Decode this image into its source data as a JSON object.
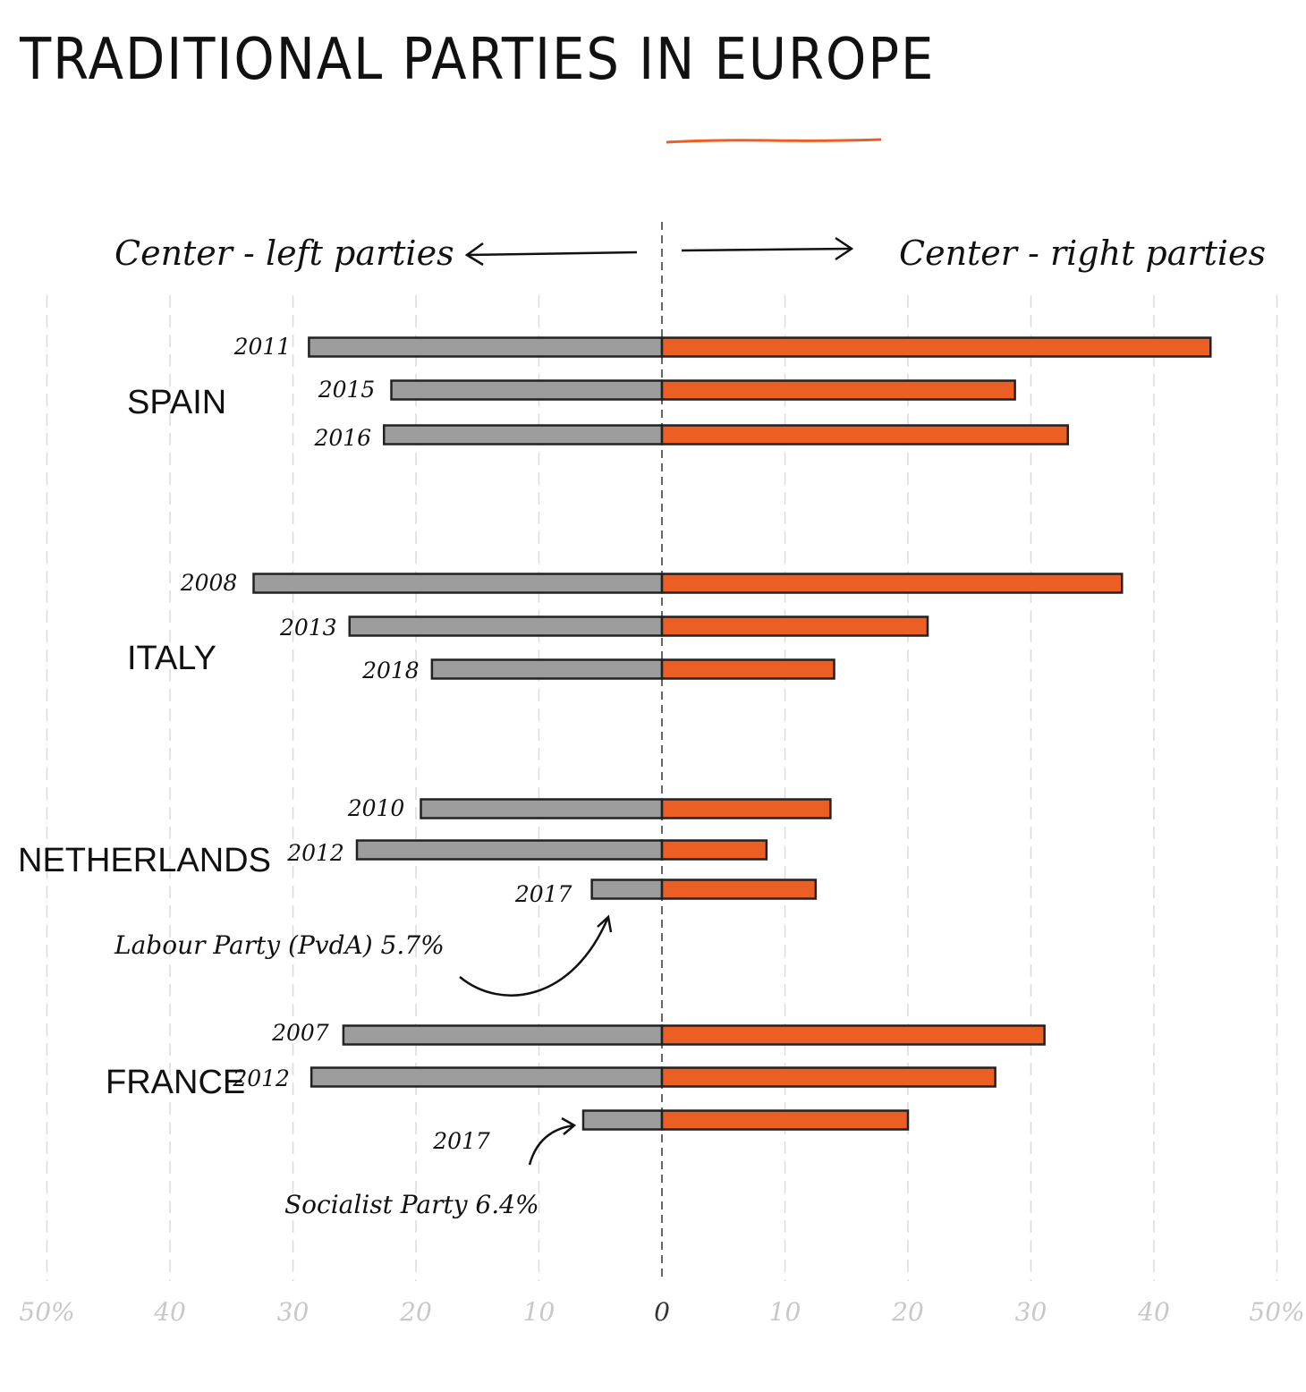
{
  "colors": {
    "left": "#9d9d9d",
    "right": "#eb5f25",
    "outline": "#222222",
    "grid": "#dcdcdc",
    "tick": "#c8c8c8"
  },
  "chart_data": {
    "type": "bar",
    "orientation": "horizontal-diverging",
    "title": "TRADITIONAL PARTIES IN EUROPE",
    "left_label": "Center - left parties",
    "right_label": "Center - right parties",
    "xlim": [
      -50,
      50
    ],
    "ticks": [
      {
        "value": -50,
        "label": "50%"
      },
      {
        "value": -40,
        "label": "40"
      },
      {
        "value": -30,
        "label": "30"
      },
      {
        "value": -20,
        "label": "20"
      },
      {
        "value": -10,
        "label": "10"
      },
      {
        "value": 0,
        "label": "0"
      },
      {
        "value": 10,
        "label": "10"
      },
      {
        "value": 20,
        "label": "20"
      },
      {
        "value": 30,
        "label": "30"
      },
      {
        "value": 40,
        "label": "40"
      },
      {
        "value": 50,
        "label": "50%"
      }
    ],
    "grid": true,
    "groups": [
      {
        "country": "SPAIN",
        "rows": [
          {
            "year": "2011",
            "left": 28.7,
            "right": 44.6
          },
          {
            "year": "2015",
            "left": 22.0,
            "right": 28.7
          },
          {
            "year": "2016",
            "left": 22.6,
            "right": 33.0
          }
        ]
      },
      {
        "country": "ITALY",
        "rows": [
          {
            "year": "2008",
            "left": 33.2,
            "right": 37.4
          },
          {
            "year": "2013",
            "left": 25.4,
            "right": 21.6
          },
          {
            "year": "2018",
            "left": 18.7,
            "right": 14.0
          }
        ]
      },
      {
        "country": "NETHERLANDS",
        "rows": [
          {
            "year": "2010",
            "left": 19.6,
            "right": 13.7
          },
          {
            "year": "2012",
            "left": 24.8,
            "right": 8.5
          },
          {
            "year": "2017",
            "left": 5.7,
            "right": 12.5
          }
        ]
      },
      {
        "country": "FRANCE",
        "rows": [
          {
            "year": "2007",
            "left": 25.9,
            "right": 31.1
          },
          {
            "year": "2012",
            "left": 28.5,
            "right": 27.1
          },
          {
            "year": "2017",
            "left": 6.4,
            "right": 20.0
          }
        ]
      }
    ],
    "annotations": [
      {
        "text": "Labour Party (PvdA) 5.7%"
      },
      {
        "text": "Socialist Party 6.4%"
      }
    ]
  }
}
